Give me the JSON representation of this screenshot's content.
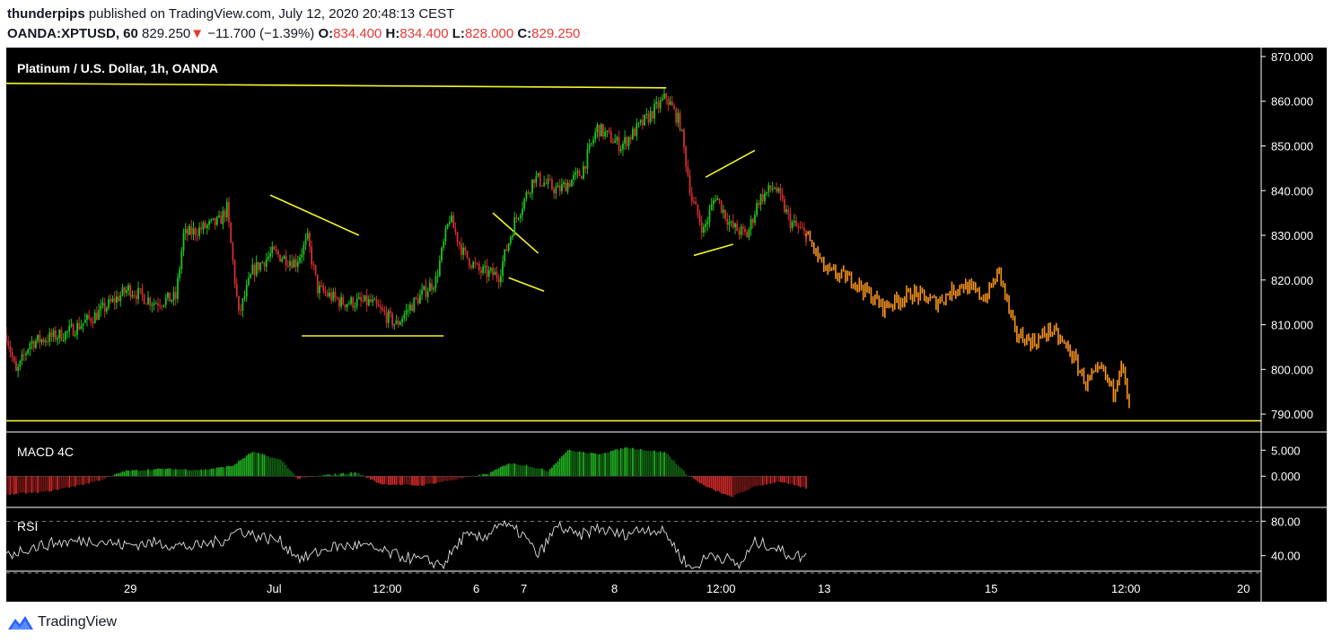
{
  "header": {
    "author": "thunderpips",
    "published": " published on TradingView.com, July 12, 2020 20:48:13 CEST",
    "symbol": "OANDA:XPTUSD, 60",
    "last": "829.250",
    "arrow": "▼",
    "change": "−11.700 (−1.39%)",
    "o_label": "O:",
    "o_value": "834.400",
    "h_label": "H:",
    "h_value": "834.400",
    "l_label": "L:",
    "l_value": "828.000",
    "c_label": "C:",
    "c_value": "829.250"
  },
  "footer": {
    "brand": "TradingView"
  },
  "colors": {
    "background": "#000000",
    "up": "#22c122",
    "down": "#d32f2f",
    "projection": "#f7941d",
    "trendline": "#f5f52a",
    "macd_pos": "#1faa1f",
    "macd_neg": "#c62828",
    "rsi_line": "#e0e0e0",
    "text": "#ffffff"
  },
  "chart_data": [
    {
      "type": "candlestick",
      "title": "Platinum / U.S. Dollar, 1h, OANDA",
      "ylim": [
        786,
        872
      ],
      "yticks": [
        "870.000",
        "860.000",
        "850.000",
        "840.000",
        "830.000",
        "820.000",
        "810.000",
        "800.000",
        "790.000"
      ],
      "ytick_values": [
        870,
        860,
        850,
        840,
        830,
        820,
        810,
        800,
        790
      ],
      "xticks": [
        "29",
        "Jul",
        "12:00",
        "6",
        "7",
        "8",
        "12:00",
        "13",
        "15",
        "12:00",
        "20"
      ],
      "price_anchors": [
        {
          "t": 0,
          "p": 808
        },
        {
          "t": 5,
          "p": 799
        },
        {
          "t": 12,
          "p": 806
        },
        {
          "t": 30,
          "p": 808
        },
        {
          "t": 45,
          "p": 812
        },
        {
          "t": 62,
          "p": 818
        },
        {
          "t": 75,
          "p": 815
        },
        {
          "t": 86,
          "p": 816
        },
        {
          "t": 90,
          "p": 830
        },
        {
          "t": 108,
          "p": 833
        },
        {
          "t": 112,
          "p": 836
        },
        {
          "t": 118,
          "p": 812
        },
        {
          "t": 125,
          "p": 822
        },
        {
          "t": 135,
          "p": 826
        },
        {
          "t": 147,
          "p": 824
        },
        {
          "t": 153,
          "p": 829
        },
        {
          "t": 158,
          "p": 818
        },
        {
          "t": 170,
          "p": 815
        },
        {
          "t": 185,
          "p": 815
        },
        {
          "t": 198,
          "p": 810
        },
        {
          "t": 205,
          "p": 814
        },
        {
          "t": 218,
          "p": 820
        },
        {
          "t": 225,
          "p": 834
        },
        {
          "t": 232,
          "p": 826
        },
        {
          "t": 240,
          "p": 822
        },
        {
          "t": 250,
          "p": 821
        },
        {
          "t": 258,
          "p": 833
        },
        {
          "t": 268,
          "p": 843
        },
        {
          "t": 280,
          "p": 840
        },
        {
          "t": 292,
          "p": 844
        },
        {
          "t": 300,
          "p": 854
        },
        {
          "t": 312,
          "p": 850
        },
        {
          "t": 325,
          "p": 856
        },
        {
          "t": 335,
          "p": 861
        },
        {
          "t": 342,
          "p": 855
        },
        {
          "t": 348,
          "p": 838
        },
        {
          "t": 354,
          "p": 831
        },
        {
          "t": 360,
          "p": 839
        },
        {
          "t": 368,
          "p": 832
        },
        {
          "t": 376,
          "p": 830
        },
        {
          "t": 382,
          "p": 838
        },
        {
          "t": 390,
          "p": 841
        },
        {
          "t": 398,
          "p": 833
        },
        {
          "t": 406,
          "p": 830
        }
      ],
      "projection_anchors": [
        {
          "t": 406,
          "p": 830
        },
        {
          "t": 416,
          "p": 822
        },
        {
          "t": 430,
          "p": 820
        },
        {
          "t": 445,
          "p": 814
        },
        {
          "t": 460,
          "p": 817
        },
        {
          "t": 472,
          "p": 815
        },
        {
          "t": 485,
          "p": 819
        },
        {
          "t": 497,
          "p": 816
        },
        {
          "t": 504,
          "p": 822
        },
        {
          "t": 512,
          "p": 808
        },
        {
          "t": 522,
          "p": 806
        },
        {
          "t": 530,
          "p": 809
        },
        {
          "t": 540,
          "p": 804
        },
        {
          "t": 548,
          "p": 797
        },
        {
          "t": 556,
          "p": 800
        },
        {
          "t": 562,
          "p": 795
        },
        {
          "t": 566,
          "p": 802
        },
        {
          "t": 570,
          "p": 791
        }
      ],
      "trendlines": [
        {
          "t1": 0,
          "p1": 864.0,
          "t2": 335,
          "p2": 863.0
        },
        {
          "t1": 0,
          "p1": 788.5,
          "t2": 637,
          "p2": 788.5
        },
        {
          "t1": 134,
          "p1": 839.0,
          "t2": 179,
          "p2": 830.0
        },
        {
          "t1": 150,
          "p1": 807.5,
          "t2": 222,
          "p2": 807.5
        },
        {
          "t1": 247,
          "p1": 835.0,
          "t2": 270,
          "p2": 826.0
        },
        {
          "t1": 255,
          "p1": 820.5,
          "t2": 273,
          "p2": 817.5
        },
        {
          "t1": 355,
          "p1": 843.0,
          "t2": 380,
          "p2": 849.0
        },
        {
          "t1": 349,
          "p1": 825.5,
          "t2": 369,
          "p2": 828.0
        }
      ]
    },
    {
      "type": "bar",
      "title": "MACD 4C",
      "ylim": [
        -6,
        8.5
      ],
      "yticks": [
        "5.000",
        "0.000"
      ],
      "ytick_values": [
        5,
        0
      ],
      "anchors": [
        {
          "t": 0,
          "v": -3.5
        },
        {
          "t": 20,
          "v": -3.0
        },
        {
          "t": 40,
          "v": -1.5
        },
        {
          "t": 50,
          "v": -0.5
        },
        {
          "t": 60,
          "v": 1.0
        },
        {
          "t": 80,
          "v": 1.4
        },
        {
          "t": 100,
          "v": 1.2
        },
        {
          "t": 115,
          "v": 2.0
        },
        {
          "t": 125,
          "v": 4.7
        },
        {
          "t": 140,
          "v": 3.0
        },
        {
          "t": 148,
          "v": -0.5
        },
        {
          "t": 165,
          "v": 0.3
        },
        {
          "t": 178,
          "v": 0.7
        },
        {
          "t": 190,
          "v": -1.5
        },
        {
          "t": 210,
          "v": -1.8
        },
        {
          "t": 230,
          "v": -0.5
        },
        {
          "t": 245,
          "v": 0.5
        },
        {
          "t": 255,
          "v": 2.5
        },
        {
          "t": 265,
          "v": 2.0
        },
        {
          "t": 275,
          "v": 1.0
        },
        {
          "t": 285,
          "v": 5.0
        },
        {
          "t": 300,
          "v": 4.2
        },
        {
          "t": 315,
          "v": 5.5
        },
        {
          "t": 335,
          "v": 4.5
        },
        {
          "t": 345,
          "v": 0.5
        },
        {
          "t": 355,
          "v": -2.0
        },
        {
          "t": 368,
          "v": -4.0
        },
        {
          "t": 380,
          "v": -2.0
        },
        {
          "t": 392,
          "v": -1.0
        },
        {
          "t": 406,
          "v": -2.3
        }
      ]
    },
    {
      "type": "line",
      "title": "RSI",
      "ylim": [
        22,
        96
      ],
      "yticks": [
        "80.00",
        "40.00"
      ],
      "ytick_values": [
        80,
        40
      ],
      "bands": [
        80,
        20
      ],
      "anchors": [
        {
          "t": 0,
          "v": 40
        },
        {
          "t": 10,
          "v": 48
        },
        {
          "t": 25,
          "v": 55
        },
        {
          "t": 45,
          "v": 58
        },
        {
          "t": 60,
          "v": 52
        },
        {
          "t": 75,
          "v": 55
        },
        {
          "t": 95,
          "v": 50
        },
        {
          "t": 110,
          "v": 58
        },
        {
          "t": 118,
          "v": 70
        },
        {
          "t": 128,
          "v": 62
        },
        {
          "t": 138,
          "v": 58
        },
        {
          "t": 150,
          "v": 36
        },
        {
          "t": 165,
          "v": 50
        },
        {
          "t": 180,
          "v": 52
        },
        {
          "t": 195,
          "v": 42
        },
        {
          "t": 210,
          "v": 35
        },
        {
          "t": 222,
          "v": 30
        },
        {
          "t": 232,
          "v": 62
        },
        {
          "t": 242,
          "v": 60
        },
        {
          "t": 250,
          "v": 78
        },
        {
          "t": 262,
          "v": 65
        },
        {
          "t": 270,
          "v": 40
        },
        {
          "t": 280,
          "v": 75
        },
        {
          "t": 290,
          "v": 62
        },
        {
          "t": 300,
          "v": 72
        },
        {
          "t": 312,
          "v": 64
        },
        {
          "t": 325,
          "v": 72
        },
        {
          "t": 335,
          "v": 66
        },
        {
          "t": 342,
          "v": 40
        },
        {
          "t": 348,
          "v": 24
        },
        {
          "t": 358,
          "v": 42
        },
        {
          "t": 366,
          "v": 36
        },
        {
          "t": 372,
          "v": 28
        },
        {
          "t": 380,
          "v": 55
        },
        {
          "t": 388,
          "v": 52
        },
        {
          "t": 396,
          "v": 42
        },
        {
          "t": 406,
          "v": 38
        }
      ]
    }
  ],
  "tf": {
    "t_max": 637
  }
}
